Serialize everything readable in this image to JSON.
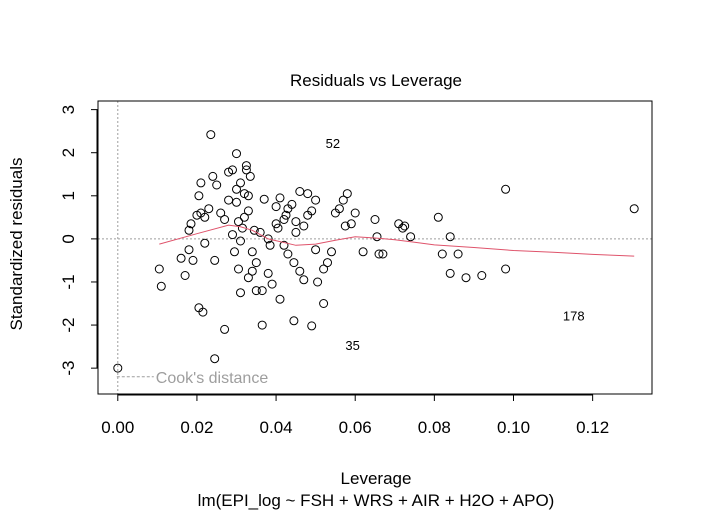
{
  "chart_data": {
    "type": "scatter",
    "title": "Residuals vs Leverage",
    "xlabel": "Leverage",
    "subtitle": "lm(EPI_log ~ FSH + WRS + AIR + H2O + APO)",
    "ylabel": "Standardized residuals",
    "xlim": [
      -0.005,
      0.135
    ],
    "ylim": [
      -3.6,
      3.2
    ],
    "x_ticks": [
      "0.00",
      "0.02",
      "0.04",
      "0.06",
      "0.08",
      "0.10",
      "0.12"
    ],
    "y_ticks": [
      "-3",
      "-2",
      "-1",
      "0",
      "1",
      "2",
      "3"
    ],
    "legend": {
      "label": "Cook's distance",
      "placement": "bottom-left"
    },
    "colors": {
      "points": "#000000",
      "smoother": "#DF536B",
      "reference": "#9e9e9e",
      "legend": "#9e9e9e"
    },
    "labeled_points": [
      {
        "label": "52",
        "x": 0.051,
        "y": 2.22
      },
      {
        "label": "35",
        "x": 0.056,
        "y": -2.46
      },
      {
        "label": "178",
        "x": 0.12,
        "y": -1.78
      }
    ],
    "points": [
      [
        0.0105,
        -0.7
      ],
      [
        0.011,
        -1.1
      ],
      [
        0.016,
        -0.45
      ],
      [
        0.017,
        -0.85
      ],
      [
        0.018,
        -0.25
      ],
      [
        0.018,
        0.2
      ],
      [
        0.0185,
        0.35
      ],
      [
        0.019,
        -0.5
      ],
      [
        0.02,
        0.55
      ],
      [
        0.021,
        0.6
      ],
      [
        0.0205,
        1.0
      ],
      [
        0.021,
        1.3
      ],
      [
        0.0205,
        -1.6
      ],
      [
        0.0215,
        -1.7
      ],
      [
        0.022,
        -0.1
      ],
      [
        0.022,
        0.5
      ],
      [
        0.023,
        0.7
      ],
      [
        0.0235,
        2.42
      ],
      [
        0.024,
        1.45
      ],
      [
        0.0245,
        -0.5
      ],
      [
        0.025,
        1.25
      ],
      [
        0.0245,
        -2.78
      ],
      [
        0.026,
        0.6
      ],
      [
        0.027,
        0.45
      ],
      [
        0.027,
        -2.1
      ],
      [
        0.028,
        1.55
      ],
      [
        0.028,
        0.9
      ],
      [
        0.029,
        0.1
      ],
      [
        0.029,
        1.6
      ],
      [
        0.0295,
        -0.3
      ],
      [
        0.03,
        1.15
      ],
      [
        0.03,
        0.85
      ],
      [
        0.0305,
        0.4
      ],
      [
        0.0305,
        -0.7
      ],
      [
        0.03,
        1.98
      ],
      [
        0.031,
        1.3
      ],
      [
        0.031,
        -0.05
      ],
      [
        0.031,
        -1.25
      ],
      [
        0.0315,
        0.25
      ],
      [
        0.032,
        0.5
      ],
      [
        0.032,
        1.05
      ],
      [
        0.0325,
        1.7
      ],
      [
        0.0325,
        1.6
      ],
      [
        0.033,
        0.65
      ],
      [
        0.033,
        1.0
      ],
      [
        0.033,
        -0.9
      ],
      [
        0.0335,
        1.45
      ],
      [
        0.034,
        -0.3
      ],
      [
        0.034,
        -0.75
      ],
      [
        0.0345,
        0.2
      ],
      [
        0.035,
        -0.55
      ],
      [
        0.035,
        -1.2
      ],
      [
        0.036,
        0.15
      ],
      [
        0.0365,
        -1.2
      ],
      [
        0.037,
        0.92
      ],
      [
        0.0365,
        -2.0
      ],
      [
        0.038,
        0.0
      ],
      [
        0.038,
        -0.8
      ],
      [
        0.0385,
        -0.15
      ],
      [
        0.039,
        -1.05
      ],
      [
        0.04,
        0.35
      ],
      [
        0.04,
        0.75
      ],
      [
        0.0405,
        0.25
      ],
      [
        0.041,
        0.95
      ],
      [
        0.041,
        -1.4
      ],
      [
        0.042,
        0.45
      ],
      [
        0.042,
        -0.15
      ],
      [
        0.0425,
        0.55
      ],
      [
        0.043,
        -0.35
      ],
      [
        0.043,
        0.7
      ],
      [
        0.044,
        0.8
      ],
      [
        0.0445,
        -1.9
      ],
      [
        0.0445,
        -0.55
      ],
      [
        0.045,
        0.15
      ],
      [
        0.045,
        0.4
      ],
      [
        0.046,
        1.1
      ],
      [
        0.046,
        -0.75
      ],
      [
        0.047,
        0.3
      ],
      [
        0.047,
        -0.95
      ],
      [
        0.048,
        1.05
      ],
      [
        0.048,
        0.55
      ],
      [
        0.049,
        0.65
      ],
      [
        0.049,
        -2.02
      ],
      [
        0.05,
        0.9
      ],
      [
        0.05,
        -0.25
      ],
      [
        0.0505,
        -1.0
      ],
      [
        0.052,
        -0.7
      ],
      [
        0.052,
        -1.5
      ],
      [
        0.053,
        -0.55
      ],
      [
        0.054,
        -0.3
      ],
      [
        0.055,
        0.6
      ],
      [
        0.056,
        0.7
      ],
      [
        0.057,
        0.9
      ],
      [
        0.0575,
        0.3
      ],
      [
        0.058,
        1.05
      ],
      [
        0.059,
        0.35
      ],
      [
        0.06,
        0.6
      ],
      [
        0.062,
        -0.3
      ],
      [
        0.065,
        0.45
      ],
      [
        0.0655,
        0.05
      ],
      [
        0.066,
        -0.35
      ],
      [
        0.067,
        -0.35
      ],
      [
        0.071,
        0.35
      ],
      [
        0.072,
        0.25
      ],
      [
        0.0725,
        0.3
      ],
      [
        0.074,
        0.05
      ],
      [
        0.081,
        0.5
      ],
      [
        0.082,
        -0.35
      ],
      [
        0.084,
        -0.8
      ],
      [
        0.084,
        0.05
      ],
      [
        0.086,
        -0.35
      ],
      [
        0.088,
        -0.9
      ],
      [
        0.092,
        -0.85
      ],
      [
        0.098,
        1.15
      ],
      [
        0.098,
        -0.7
      ],
      [
        0.1305,
        0.7
      ],
      [
        0.0,
        -3.0
      ]
    ],
    "smoother": [
      [
        0.0105,
        -0.12
      ],
      [
        0.02,
        0.12
      ],
      [
        0.028,
        0.32
      ],
      [
        0.031,
        0.28
      ],
      [
        0.034,
        0.2
      ],
      [
        0.038,
        0.0
      ],
      [
        0.045,
        -0.15
      ],
      [
        0.05,
        -0.12
      ],
      [
        0.055,
        -0.03
      ],
      [
        0.06,
        0.05
      ],
      [
        0.065,
        0.02
      ],
      [
        0.07,
        -0.02
      ],
      [
        0.075,
        -0.08
      ],
      [
        0.08,
        -0.14
      ],
      [
        0.09,
        -0.2
      ],
      [
        0.1,
        -0.27
      ],
      [
        0.11,
        -0.31
      ],
      [
        0.12,
        -0.36
      ],
      [
        0.1305,
        -0.4
      ]
    ]
  }
}
